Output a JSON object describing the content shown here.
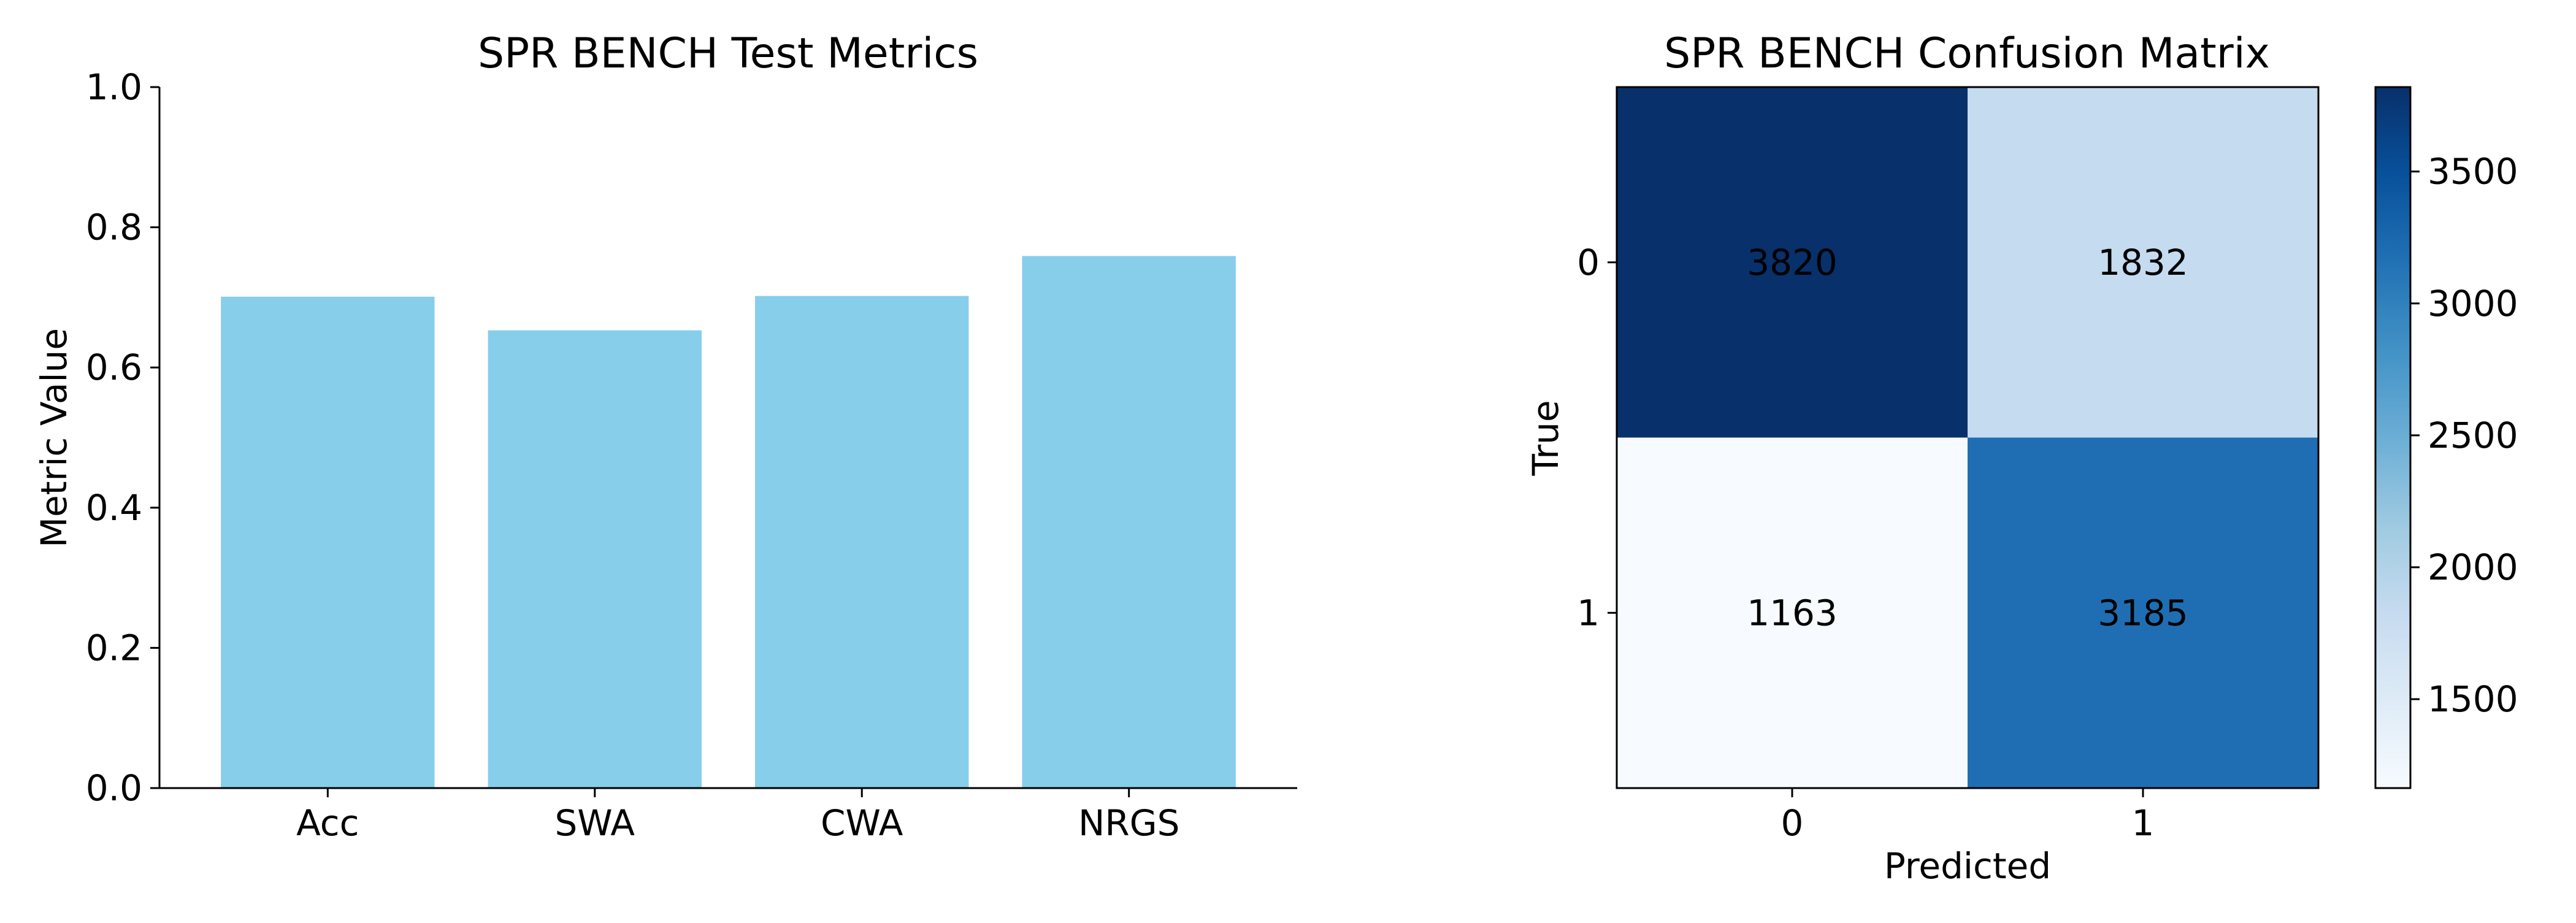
{
  "chart_data": [
    {
      "type": "bar",
      "title": "SPR BENCH Test Metrics",
      "xlabel": "",
      "ylabel": "Metric Value",
      "categories": [
        "Acc",
        "SWA",
        "CWA",
        "NRGS"
      ],
      "values": [
        0.701,
        0.653,
        0.702,
        0.759
      ],
      "ylim": [
        0,
        1.0
      ],
      "yticks": [
        "0.0",
        "0.2",
        "0.4",
        "0.6",
        "0.8",
        "1.0"
      ],
      "bar_color": "#87ceeb",
      "grid": false
    },
    {
      "type": "heatmap",
      "title": "SPR BENCH Confusion Matrix",
      "xlabel": "Predicted",
      "ylabel": "True",
      "x_labels": [
        "0",
        "1"
      ],
      "y_labels": [
        "0",
        "1"
      ],
      "matrix": [
        [
          3820,
          1832
        ],
        [
          1163,
          3185
        ]
      ],
      "colormap": "Blues",
      "colorbar_range": [
        1163,
        3820
      ],
      "colorbar_ticks": [
        "1500",
        "2000",
        "2500",
        "3000",
        "3500"
      ]
    }
  ]
}
